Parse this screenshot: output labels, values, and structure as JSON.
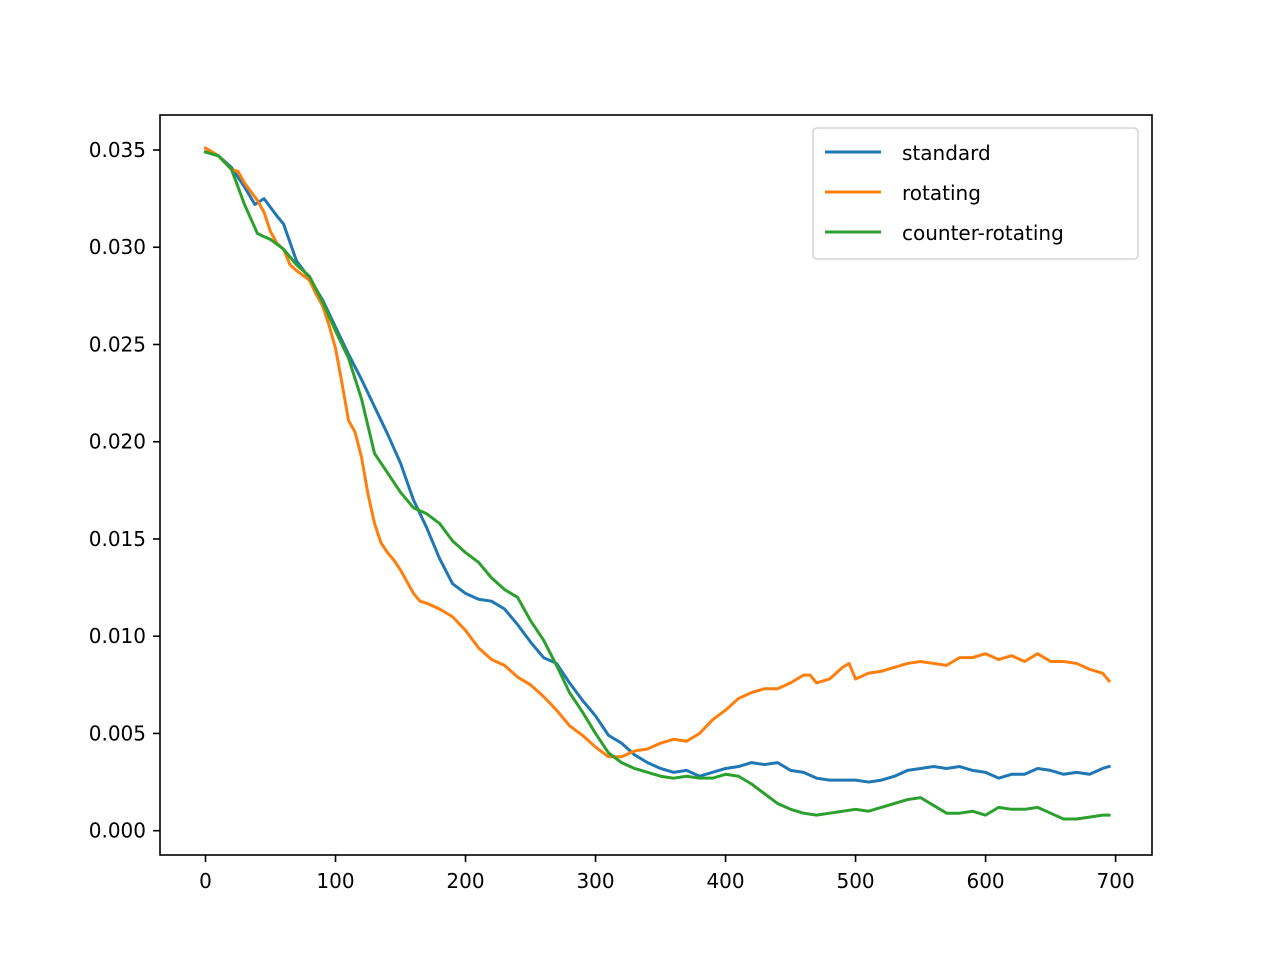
{
  "chart_data": {
    "type": "line",
    "title": "",
    "xlabel": "",
    "ylabel": "",
    "xlim": [
      -35,
      728
    ],
    "ylim": [
      -0.00125,
      0.0368
    ],
    "xticks": [
      0,
      100,
      200,
      300,
      400,
      500,
      600,
      700
    ],
    "xtick_labels": [
      "0",
      "100",
      "200",
      "300",
      "400",
      "500",
      "600",
      "700"
    ],
    "yticks": [
      0.0,
      0.005,
      0.01,
      0.015,
      0.02,
      0.025,
      0.03,
      0.035
    ],
    "ytick_labels": [
      "0.000",
      "0.005",
      "0.010",
      "0.015",
      "0.020",
      "0.025",
      "0.030",
      "0.035"
    ],
    "grid": false,
    "legend_position": "top-right",
    "series": [
      {
        "name": "standard",
        "color": "#1f77b4",
        "x": [
          0,
          10,
          20,
          30,
          38,
          45,
          55,
          60,
          70,
          80,
          90,
          100,
          110,
          120,
          130,
          140,
          150,
          160,
          170,
          180,
          190,
          200,
          210,
          220,
          230,
          240,
          250,
          260,
          270,
          280,
          290,
          300,
          310,
          320,
          330,
          340,
          350,
          360,
          370,
          380,
          390,
          400,
          410,
          420,
          430,
          440,
          450,
          460,
          470,
          480,
          490,
          500,
          510,
          520,
          530,
          540,
          550,
          560,
          570,
          580,
          590,
          600,
          610,
          620,
          630,
          640,
          650,
          660,
          670,
          680,
          690,
          695
        ],
        "y": [
          0.0349,
          0.0347,
          0.0341,
          0.0331,
          0.0322,
          0.0325,
          0.0316,
          0.0312,
          0.0293,
          0.0284,
          0.0273,
          0.0259,
          0.0245,
          0.0232,
          0.0218,
          0.0204,
          0.0189,
          0.017,
          0.0156,
          0.014,
          0.0127,
          0.0122,
          0.0119,
          0.0118,
          0.0114,
          0.0106,
          0.0097,
          0.0089,
          0.0086,
          0.0076,
          0.0067,
          0.0059,
          0.0049,
          0.0045,
          0.0039,
          0.0035,
          0.0032,
          0.003,
          0.0031,
          0.0028,
          0.003,
          0.0032,
          0.0033,
          0.0035,
          0.0034,
          0.0035,
          0.0031,
          0.003,
          0.0027,
          0.0026,
          0.0026,
          0.0026,
          0.0025,
          0.0026,
          0.0028,
          0.0031,
          0.0032,
          0.0033,
          0.0032,
          0.0033,
          0.0031,
          0.003,
          0.0027,
          0.0029,
          0.0029,
          0.0032,
          0.0031,
          0.0029,
          0.003,
          0.0029,
          0.0032,
          0.0033
        ]
      },
      {
        "name": "rotating",
        "color": "#ff7f0e",
        "x": [
          0,
          10,
          20,
          25,
          30,
          40,
          45,
          50,
          55,
          60,
          65,
          70,
          80,
          85,
          90,
          95,
          100,
          105,
          110,
          115,
          120,
          125,
          130,
          135,
          140,
          145,
          150,
          155,
          160,
          165,
          170,
          180,
          190,
          200,
          210,
          220,
          230,
          240,
          250,
          260,
          270,
          280,
          290,
          300,
          310,
          320,
          330,
          340,
          350,
          360,
          370,
          380,
          390,
          400,
          410,
          420,
          430,
          440,
          450,
          460,
          465,
          470,
          480,
          490,
          495,
          500,
          510,
          520,
          530,
          540,
          550,
          560,
          570,
          580,
          590,
          600,
          610,
          620,
          630,
          640,
          650,
          660,
          670,
          680,
          690,
          695
        ],
        "y": [
          0.0351,
          0.0347,
          0.034,
          0.0339,
          0.0333,
          0.0324,
          0.0318,
          0.0308,
          0.0302,
          0.0299,
          0.0291,
          0.0288,
          0.0283,
          0.0276,
          0.027,
          0.026,
          0.0248,
          0.023,
          0.0211,
          0.0205,
          0.0192,
          0.0173,
          0.0158,
          0.0148,
          0.0143,
          0.0139,
          0.0134,
          0.0128,
          0.0122,
          0.0118,
          0.0117,
          0.0114,
          0.011,
          0.0103,
          0.0094,
          0.0088,
          0.0085,
          0.0079,
          0.0075,
          0.0069,
          0.0062,
          0.0054,
          0.0049,
          0.0043,
          0.0038,
          0.0038,
          0.0041,
          0.0042,
          0.0045,
          0.0047,
          0.0046,
          0.005,
          0.0057,
          0.0062,
          0.0068,
          0.0071,
          0.0073,
          0.0073,
          0.0076,
          0.008,
          0.008,
          0.0076,
          0.0078,
          0.0084,
          0.0086,
          0.0078,
          0.0081,
          0.0082,
          0.0084,
          0.0086,
          0.0087,
          0.0086,
          0.0085,
          0.0089,
          0.0089,
          0.0091,
          0.0088,
          0.009,
          0.0087,
          0.0091,
          0.0087,
          0.0087,
          0.0086,
          0.0083,
          0.0081,
          0.0077
        ]
      },
      {
        "name": "counter-rotating",
        "color": "#2ca02c",
        "x": [
          0,
          10,
          20,
          30,
          40,
          50,
          60,
          70,
          80,
          90,
          100,
          110,
          120,
          130,
          140,
          150,
          160,
          170,
          180,
          190,
          200,
          210,
          220,
          230,
          240,
          250,
          260,
          270,
          280,
          290,
          300,
          310,
          320,
          330,
          340,
          350,
          360,
          370,
          380,
          390,
          400,
          410,
          420,
          430,
          440,
          450,
          460,
          470,
          480,
          490,
          500,
          510,
          520,
          530,
          540,
          550,
          560,
          570,
          580,
          590,
          600,
          610,
          620,
          630,
          640,
          650,
          660,
          670,
          680,
          690,
          695
        ],
        "y": [
          0.0349,
          0.0347,
          0.034,
          0.0322,
          0.0307,
          0.0304,
          0.0299,
          0.0291,
          0.0285,
          0.0272,
          0.0257,
          0.0243,
          0.0222,
          0.0194,
          0.0184,
          0.0174,
          0.0166,
          0.0163,
          0.0158,
          0.0149,
          0.0143,
          0.0138,
          0.013,
          0.0124,
          0.012,
          0.0108,
          0.0098,
          0.0085,
          0.0071,
          0.0061,
          0.005,
          0.004,
          0.0035,
          0.0032,
          0.003,
          0.0028,
          0.0027,
          0.0028,
          0.0027,
          0.0027,
          0.0029,
          0.0028,
          0.0024,
          0.0019,
          0.0014,
          0.0011,
          0.0009,
          0.0008,
          0.0009,
          0.001,
          0.0011,
          0.001,
          0.0012,
          0.0014,
          0.0016,
          0.0017,
          0.0013,
          0.0009,
          0.0009,
          0.001,
          0.0008,
          0.0012,
          0.0011,
          0.0011,
          0.0012,
          0.0009,
          0.0006,
          0.0006,
          0.0007,
          0.0008,
          0.0008
        ]
      }
    ]
  }
}
